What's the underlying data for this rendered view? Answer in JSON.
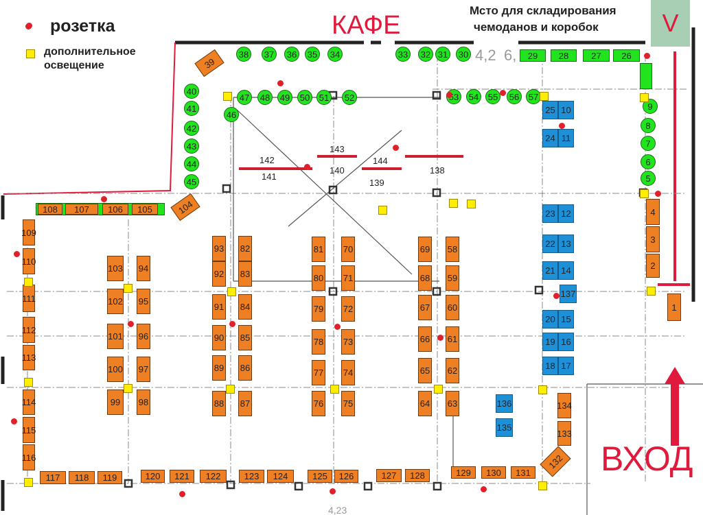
{
  "legend": {
    "outlet_label": "розетка",
    "light_label_1": "дополнительное",
    "light_label_2": "освещение"
  },
  "labels": {
    "cafe": "КАФЕ",
    "storage_1": "Мсто для складирования",
    "storage_2": "чемоданов и коробок",
    "storage_mark": "V",
    "entrance": "ВХОД",
    "dim_1": "4,2",
    "dim_2": "6,",
    "dim_3": "4,23"
  },
  "colors": {
    "booth_orange": "#ee7f22",
    "booth_green": "#22e41e",
    "booth_blue": "#1e90d8",
    "outlet": "#e0202a",
    "light": "#ffee00",
    "accent_red": "#e01a3c",
    "storage_box": "#a8cfb4"
  },
  "booths_round_green": [
    "38",
    "37",
    "36",
    "35",
    "34",
    "33",
    "32",
    "31",
    "30",
    "40",
    "41",
    "42",
    "43",
    "44",
    "45",
    "46",
    "47",
    "48",
    "49",
    "50",
    "51",
    "52",
    "53",
    "54",
    "55",
    "56",
    "57",
    "9",
    "8",
    "7",
    "6",
    "5"
  ],
  "booths_green": [
    "29",
    "28",
    "27",
    "26",
    ""
  ],
  "booths_blue": [
    "25",
    "10",
    "24",
    "11",
    "23",
    "12",
    "22",
    "13",
    "21",
    "14",
    "137",
    "20",
    "15",
    "19",
    "16",
    "18",
    "17",
    "136",
    "135"
  ],
  "booths_orange": [
    "39",
    "104",
    "108",
    "107",
    "106",
    "105",
    "109",
    "110",
    "111",
    "112",
    "113",
    "114",
    "115",
    "116",
    "117",
    "118",
    "119",
    "120",
    "121",
    "122",
    "123",
    "124",
    "125",
    "126",
    "127",
    "128",
    "129",
    "130",
    "131",
    "132",
    "133",
    "134",
    "4",
    "3",
    "2",
    "1",
    "103",
    "94",
    "102",
    "95",
    "101",
    "96",
    "100",
    "97",
    "99",
    "98",
    "93",
    "82",
    "92",
    "83",
    "91",
    "84",
    "90",
    "85",
    "89",
    "86",
    "88",
    "87",
    "81",
    "70",
    "80",
    "71",
    "79",
    "72",
    "78",
    "73",
    "77",
    "74",
    "76",
    "75",
    "69",
    "58",
    "68",
    "59",
    "67",
    "60",
    "66",
    "61",
    "65",
    "62",
    "64",
    "63"
  ],
  "center_zones": [
    "142",
    "141",
    "143",
    "140",
    "144",
    "139",
    "138"
  ]
}
